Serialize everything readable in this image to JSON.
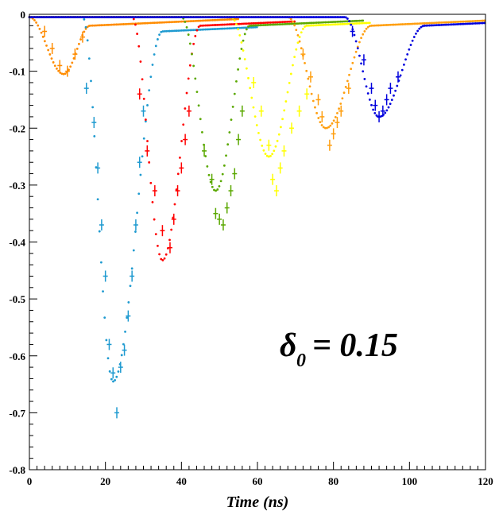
{
  "chart_data": {
    "type": "scatter",
    "title": "",
    "xlabel": "Time (ns)",
    "ylabel": "",
    "xlim": [
      0,
      120
    ],
    "ylim": [
      -0.8,
      0
    ],
    "grid": false,
    "x_ticks": [
      "0",
      "20",
      "40",
      "60",
      "80",
      "100",
      "120"
    ],
    "y_ticks": [
      "0",
      "-0.1",
      "-0.2",
      "-0.3",
      "-0.4",
      "-0.5",
      "-0.6",
      "-0.7",
      "-0.8"
    ],
    "annotation": {
      "symbol": "δ",
      "subscript": "0",
      "text": "= 0.15"
    },
    "series": [
      {
        "color": "#ff8c00",
        "start": 0,
        "trough_time": 9,
        "trough": -0.105,
        "settle_time": 16,
        "tail": -0.02,
        "sim_end": 55,
        "meas": [
          [
            4,
            -0.03
          ],
          [
            6,
            -0.06
          ],
          [
            8,
            -0.09
          ],
          [
            10,
            -0.1
          ],
          [
            12,
            -0.07
          ],
          [
            14,
            -0.04
          ]
        ]
      },
      {
        "color": "#1e9ad0",
        "start": 14,
        "trough_time": 22,
        "trough": -0.645,
        "settle_time": 35,
        "tail": -0.03,
        "sim_end": 60,
        "meas": [
          [
            15,
            -0.13
          ],
          [
            17,
            -0.19
          ],
          [
            18,
            -0.27
          ],
          [
            19,
            -0.37
          ],
          [
            20,
            -0.46
          ],
          [
            21,
            -0.58
          ],
          [
            22,
            -0.63
          ],
          [
            23,
            -0.7
          ],
          [
            24,
            -0.62
          ],
          [
            25,
            -0.59
          ],
          [
            26,
            -0.53
          ],
          [
            27,
            -0.46
          ],
          [
            28,
            -0.37
          ],
          [
            29,
            -0.26
          ],
          [
            30,
            -0.17
          ]
        ]
      },
      {
        "color": "#ff0000",
        "start": 27,
        "trough_time": 35,
        "trough": -0.432,
        "settle_time": 45,
        "tail": -0.02,
        "sim_end": 70,
        "meas": [
          [
            29,
            -0.14
          ],
          [
            31,
            -0.24
          ],
          [
            33,
            -0.31
          ],
          [
            35,
            -0.38
          ],
          [
            37,
            -0.41
          ],
          [
            38,
            -0.36
          ],
          [
            39,
            -0.31
          ],
          [
            40,
            -0.27
          ],
          [
            41,
            -0.22
          ],
          [
            42,
            -0.17
          ]
        ]
      },
      {
        "color": "#5aa800",
        "start": 40,
        "trough_time": 49,
        "trough": -0.31,
        "settle_time": 58,
        "tail": -0.02,
        "sim_end": 88,
        "meas": [
          [
            46,
            -0.24
          ],
          [
            48,
            -0.29
          ],
          [
            49,
            -0.35
          ],
          [
            50,
            -0.36
          ],
          [
            51,
            -0.37
          ],
          [
            52,
            -0.34
          ],
          [
            53,
            -0.31
          ],
          [
            54,
            -0.28
          ],
          [
            55,
            -0.22
          ],
          [
            56,
            -0.17
          ]
        ]
      },
      {
        "color": "#ffff00",
        "start": 53,
        "trough_time": 63,
        "trough": -0.25,
        "settle_time": 73,
        "tail": -0.02,
        "sim_end": 90,
        "meas": [
          [
            59,
            -0.12
          ],
          [
            61,
            -0.17
          ],
          [
            63,
            -0.23
          ],
          [
            64,
            -0.29
          ],
          [
            65,
            -0.31
          ],
          [
            66,
            -0.27
          ],
          [
            67,
            -0.24
          ],
          [
            69,
            -0.2
          ],
          [
            71,
            -0.17
          ],
          [
            73,
            -0.14
          ]
        ]
      },
      {
        "color": "#ff9f10",
        "start": 68,
        "trough_time": 78,
        "trough": -0.2,
        "settle_time": 90,
        "tail": -0.02,
        "sim_end": 120,
        "meas": [
          [
            72,
            -0.07
          ],
          [
            74,
            -0.11
          ],
          [
            76,
            -0.15
          ],
          [
            77,
            -0.18
          ],
          [
            79,
            -0.23
          ],
          [
            80,
            -0.21
          ],
          [
            81,
            -0.19
          ],
          [
            82,
            -0.17
          ],
          [
            84,
            -0.13
          ]
        ]
      },
      {
        "color": "#0000dd",
        "start": 83,
        "trough_time": 92,
        "trough": -0.18,
        "settle_time": 104,
        "tail": -0.02,
        "sim_end": 120,
        "meas": [
          [
            85,
            -0.03
          ],
          [
            88,
            -0.08
          ],
          [
            90,
            -0.13
          ],
          [
            91,
            -0.16
          ],
          [
            92,
            -0.18
          ],
          [
            93,
            -0.17
          ],
          [
            94,
            -0.15
          ],
          [
            95,
            -0.13
          ],
          [
            97,
            -0.11
          ]
        ]
      }
    ]
  }
}
